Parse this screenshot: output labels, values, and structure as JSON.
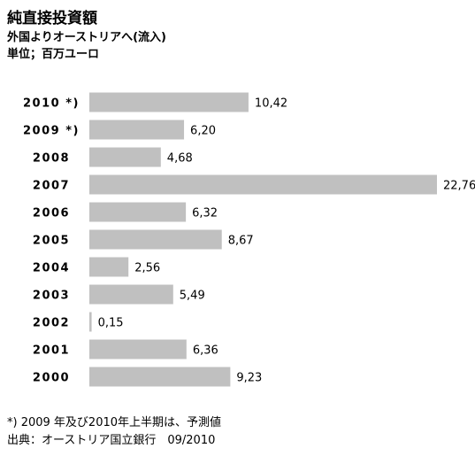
{
  "header": {
    "title": "純直接投資額",
    "subtitle": "外国よりオーストリアへ(流入)",
    "unit": "単位；百万ユーロ"
  },
  "footer": {
    "note": "*) 2009 年及び2010年上半期は、予測値",
    "source": "出典：オーストリア国立銀行　09/2010"
  },
  "chart_data": {
    "type": "bar",
    "orientation": "horizontal",
    "categories": [
      "2010 *)",
      "2009 *)",
      "2008",
      "2007",
      "2006",
      "2005",
      "2004",
      "2003",
      "2002",
      "2001",
      "2000"
    ],
    "values": [
      10.42,
      6.2,
      4.68,
      22.76,
      6.32,
      8.67,
      2.56,
      5.49,
      0.15,
      6.36,
      9.23
    ],
    "value_labels": [
      "10,42",
      "6,20",
      "4,68",
      "22,76",
      "6,32",
      "8,67",
      "2,56",
      "5,49",
      "0,15",
      "6,36",
      "9,23"
    ],
    "xlim": [
      0,
      22.76
    ],
    "bar_color": "#c0c0c0",
    "grid": false,
    "legend": "none"
  }
}
